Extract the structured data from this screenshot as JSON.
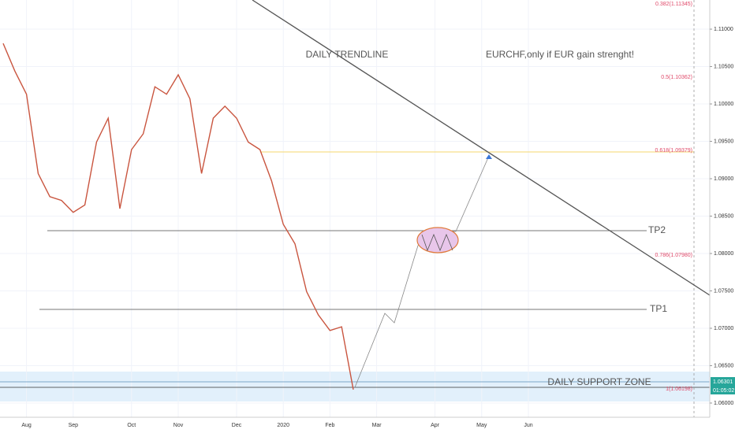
{
  "chart_data": {
    "type": "line",
    "color": "#c9553f",
    "grid": true,
    "categories": [
      null,
      null,
      "Aug",
      null,
      null,
      null,
      "Sep",
      null,
      null,
      null,
      null,
      "Oct",
      null,
      null,
      null,
      "Nov",
      null,
      null,
      null,
      null,
      "Dec",
      null,
      null,
      null,
      "2020",
      null,
      null,
      null,
      "Feb",
      null,
      null,
      null,
      "Mar",
      null,
      null,
      null,
      null,
      "Apr",
      null,
      null,
      null,
      "May",
      null,
      null,
      null,
      "Jun",
      null,
      null,
      null,
      null,
      null,
      null,
      null,
      null,
      null,
      null,
      null,
      null,
      null,
      null,
      null
    ],
    "values": [
      1.1081,
      1.1044,
      1.1013,
      1.0907,
      1.0876,
      1.0871,
      1.0855,
      1.0865,
      1.0949,
      1.0981,
      1.086,
      1.0939,
      1.096,
      1.1023,
      1.1013,
      1.1039,
      1.1007,
      1.0907,
      1.0981,
      1.0997,
      1.0981,
      1.0949,
      1.0939,
      1.0897,
      1.0839,
      1.0813,
      1.0749,
      1.0718,
      1.0697,
      1.0702,
      1.0618,
      null,
      null,
      null,
      null,
      null,
      null,
      null,
      null,
      null,
      null,
      null,
      null,
      null,
      null,
      null,
      null,
      null,
      null,
      null,
      null,
      null,
      null,
      null,
      null,
      null,
      null,
      null,
      null,
      null,
      null
    ],
    "ylim": [
      1.0581,
      1.1139
    ],
    "yticks": [
      {
        "value": 1.06,
        "label": "1.06000"
      },
      {
        "value": 1.065,
        "label": "1.06500"
      },
      {
        "value": 1.07,
        "label": "1.07000"
      },
      {
        "value": 1.075,
        "label": "1.07500"
      },
      {
        "value": 1.08,
        "label": "1.08000"
      },
      {
        "value": 1.085,
        "label": "1.08500"
      },
      {
        "value": 1.09,
        "label": "1.09000"
      },
      {
        "value": 1.095,
        "label": "1.09500"
      },
      {
        "value": 1.1,
        "label": "1.10000"
      },
      {
        "value": 1.105,
        "label": "1.10500"
      },
      {
        "value": 1.11,
        "label": "1.11000"
      }
    ],
    "annotations": {
      "trendline": "DAILY TRENDLINE",
      "note": "EURCHF,only if EUR gain strenght!",
      "tp2": "TP2",
      "tp1": "TP1",
      "support": "DAILY SUPPORT ZONE",
      "fib382": "0.382(1.11345)",
      "fib5": "0.5(1.10362)",
      "fib618": "0.618(1.09379)",
      "fib786": "0.786(1.07980)",
      "fib1": "1(1.06198)",
      "price": "1.06301",
      "countdown": "01:05:02"
    }
  }
}
